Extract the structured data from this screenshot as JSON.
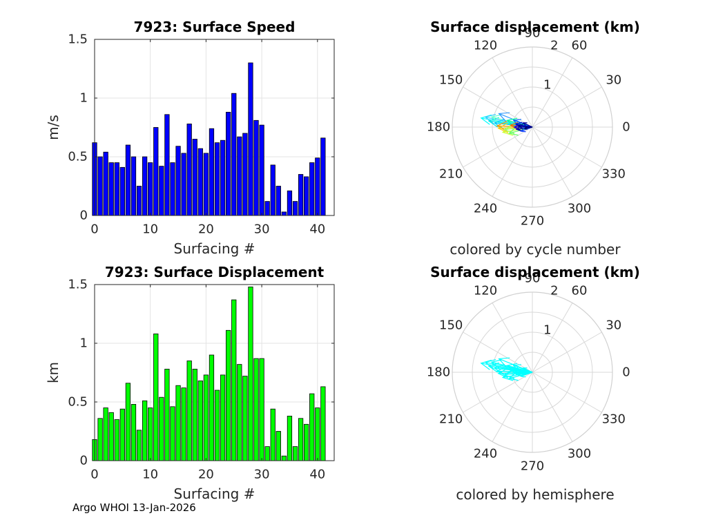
{
  "footer_text": "Argo WHOI 13-Jan-2026",
  "chart_data": [
    {
      "type": "bar",
      "title": "7923: Surface Speed",
      "xlabel": "Surfacing #",
      "ylabel": "m/s",
      "xlim": [
        0,
        43
      ],
      "ylim": [
        0,
        1.5
      ],
      "xticks": [
        "0",
        "10",
        "20",
        "30",
        "40"
      ],
      "yticks": [
        "0",
        "0.5",
        "1",
        "1.5"
      ],
      "grid": true,
      "color": "#0000ff",
      "x": [
        0,
        1,
        2,
        3,
        4,
        5,
        6,
        7,
        8,
        9,
        10,
        11,
        12,
        13,
        14,
        15,
        16,
        17,
        18,
        19,
        20,
        21,
        22,
        23,
        24,
        25,
        26,
        27,
        28,
        29,
        30,
        31,
        32,
        33,
        34,
        35,
        36,
        37,
        38,
        39,
        40,
        41
      ],
      "values": [
        0.62,
        0.5,
        0.54,
        0.45,
        0.45,
        0.41,
        0.6,
        0.5,
        0.25,
        0.5,
        0.45,
        0.75,
        0.42,
        0.86,
        0.45,
        0.59,
        0.53,
        0.78,
        0.65,
        0.57,
        0.53,
        0.74,
        0.62,
        0.64,
        0.88,
        1.04,
        0.67,
        0.7,
        1.3,
        0.81,
        0.77,
        0.12,
        0.43,
        0.25,
        0.03,
        0.21,
        0.12,
        0.35,
        0.33,
        0.45,
        0.49,
        0.66
      ]
    },
    {
      "type": "bar",
      "title": "7923: Surface Displacement",
      "xlabel": "Surfacing #",
      "ylabel": "km",
      "xlim": [
        0,
        43
      ],
      "ylim": [
        0,
        1.5
      ],
      "xticks": [
        "0",
        "10",
        "20",
        "30",
        "40"
      ],
      "yticks": [
        "0",
        "0.5",
        "1",
        "1.5"
      ],
      "grid": true,
      "color": "#00ff00",
      "x": [
        0,
        1,
        2,
        3,
        4,
        5,
        6,
        7,
        8,
        9,
        10,
        11,
        12,
        13,
        14,
        15,
        16,
        17,
        18,
        19,
        20,
        21,
        22,
        23,
        24,
        25,
        26,
        27,
        28,
        29,
        30,
        31,
        32,
        33,
        34,
        35,
        36,
        37,
        38,
        39,
        40,
        41
      ],
      "values": [
        0.18,
        0.36,
        0.45,
        0.41,
        0.35,
        0.44,
        0.66,
        0.48,
        0.26,
        0.51,
        0.45,
        1.08,
        0.54,
        0.78,
        0.46,
        0.64,
        0.62,
        0.85,
        0.78,
        0.68,
        0.73,
        0.9,
        0.6,
        0.73,
        1.11,
        1.37,
        0.82,
        0.72,
        1.48,
        0.87,
        0.87,
        0.12,
        0.44,
        0.25,
        0.04,
        0.38,
        0.12,
        0.36,
        0.31,
        0.57,
        0.45,
        0.63
      ]
    },
    {
      "type": "polar-arrows",
      "title": "Surface displacement (km)",
      "caption": "colored by cycle number",
      "rlim": [
        0,
        2
      ],
      "rtick_labels": [
        "1",
        "2"
      ],
      "angle_labels": [
        "0",
        "30",
        "60",
        "90",
        "120",
        "150",
        "180",
        "210",
        "240",
        "270",
        "300",
        "330"
      ],
      "grid_color": "#d8d8d8",
      "arrows": [
        {
          "r": 1.3,
          "theta": 170,
          "color": "#00ffff"
        },
        {
          "r": 1.2,
          "theta": 168,
          "color": "#33ccff"
        },
        {
          "r": 1.1,
          "theta": 172,
          "color": "#00e6e6"
        },
        {
          "r": 1.05,
          "theta": 166,
          "color": "#66ffcc"
        },
        {
          "r": 0.95,
          "theta": 174,
          "color": "#00ccff"
        },
        {
          "r": 0.9,
          "theta": 158,
          "color": "#3399ff"
        },
        {
          "r": 0.88,
          "theta": 178,
          "color": "#ff9900"
        },
        {
          "r": 0.85,
          "theta": 182,
          "color": "#ffcc00"
        },
        {
          "r": 0.75,
          "theta": 190,
          "color": "#ccff33"
        },
        {
          "r": 0.7,
          "theta": 185,
          "color": "#99ff66"
        },
        {
          "r": 0.65,
          "theta": 165,
          "color": "#00ff99"
        },
        {
          "r": 0.6,
          "theta": 195,
          "color": "#66ff66"
        },
        {
          "r": 0.55,
          "theta": 175,
          "color": "#ff6600"
        },
        {
          "r": 0.5,
          "theta": 160,
          "color": "#0066ff"
        },
        {
          "r": 0.45,
          "theta": 180,
          "color": "#0000ff"
        },
        {
          "r": 0.42,
          "theta": 170,
          "color": "#0000cc"
        },
        {
          "r": 0.4,
          "theta": 188,
          "color": "#0000aa"
        },
        {
          "r": 0.35,
          "theta": 175,
          "color": "#000080"
        },
        {
          "r": 0.3,
          "theta": 200,
          "color": "#0033ff"
        },
        {
          "r": 0.25,
          "theta": 155,
          "color": "#000099"
        },
        {
          "r": 0.2,
          "theta": 190,
          "color": "#000066"
        }
      ]
    },
    {
      "type": "polar-arrows",
      "title": "Surface displacement (km)",
      "caption": "colored by hemisphere",
      "rlim": [
        0,
        2
      ],
      "rtick_labels": [
        "1",
        "2"
      ],
      "angle_labels": [
        "0",
        "30",
        "60",
        "90",
        "120",
        "150",
        "180",
        "210",
        "240",
        "270",
        "300",
        "330"
      ],
      "grid_color": "#d8d8d8",
      "arrows": [
        {
          "r": 1.3,
          "theta": 170,
          "color": "#00ffff"
        },
        {
          "r": 1.2,
          "theta": 168,
          "color": "#00ffff"
        },
        {
          "r": 1.1,
          "theta": 172,
          "color": "#00ffff"
        },
        {
          "r": 1.05,
          "theta": 166,
          "color": "#00ffff"
        },
        {
          "r": 0.95,
          "theta": 174,
          "color": "#00ffff"
        },
        {
          "r": 0.9,
          "theta": 158,
          "color": "#00ffff"
        },
        {
          "r": 0.88,
          "theta": 178,
          "color": "#00ffff"
        },
        {
          "r": 0.85,
          "theta": 182,
          "color": "#00ffff"
        },
        {
          "r": 0.75,
          "theta": 190,
          "color": "#00ffff"
        },
        {
          "r": 0.7,
          "theta": 185,
          "color": "#00ffff"
        },
        {
          "r": 0.65,
          "theta": 165,
          "color": "#00ffff"
        },
        {
          "r": 0.6,
          "theta": 195,
          "color": "#00ffff"
        },
        {
          "r": 0.55,
          "theta": 175,
          "color": "#00ffff"
        },
        {
          "r": 0.5,
          "theta": 160,
          "color": "#00ffff"
        },
        {
          "r": 0.45,
          "theta": 180,
          "color": "#00ffff"
        },
        {
          "r": 0.4,
          "theta": 188,
          "color": "#00ffff"
        },
        {
          "r": 0.3,
          "theta": 200,
          "color": "#00ffff"
        },
        {
          "r": 0.25,
          "theta": 155,
          "color": "#00ffff"
        }
      ]
    }
  ]
}
